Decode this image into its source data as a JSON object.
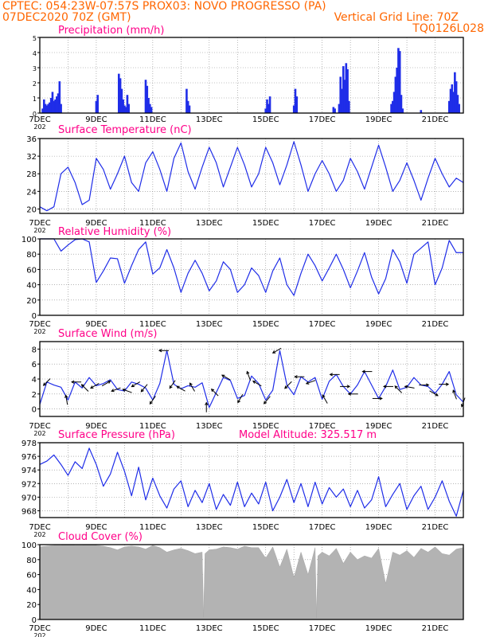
{
  "header": {
    "line1_left": "CPTEC:   054:23W-07:57S   PROX03: NOVO PROGRESSO (PA)",
    "line2_left": "07DEC2020 70Z (GMT)",
    "line2_right": "Vertical Grid Line: 70Z",
    "line3_right": "TQ0126L028"
  },
  "colors": {
    "header": "#ff6600",
    "title": "#ff0088",
    "series": "#1f2de8",
    "bars": "#1f2de8",
    "cloud": "#b3b3b3",
    "grid": "#888888",
    "arrow": "#000000"
  },
  "x_axis": {
    "labels": [
      "7DEC",
      "9DEC",
      "11DEC",
      "13DEC",
      "15DEC",
      "17DEC",
      "19DEC",
      "21DEC"
    ],
    "day_range": [
      7,
      22
    ],
    "year_stub": "202"
  },
  "chart_data": [
    {
      "id": "precip",
      "type": "bar",
      "title": "Precipitation (mm/h)",
      "x_unit": "day of December 2020",
      "ylim": [
        0,
        5
      ],
      "yticks": [
        0,
        1,
        2,
        3,
        4,
        5
      ],
      "x": [
        7.1,
        7.15,
        7.2,
        7.25,
        7.3,
        7.35,
        7.4,
        7.45,
        7.5,
        7.55,
        7.6,
        7.65,
        7.7,
        7.75,
        9.0,
        9.05,
        9.8,
        9.85,
        9.9,
        9.95,
        10.0,
        10.05,
        10.1,
        10.15,
        10.75,
        10.8,
        10.85,
        10.9,
        10.95,
        12.2,
        12.25,
        12.3,
        15.0,
        15.05,
        15.1,
        15.15,
        16.0,
        16.05,
        16.1,
        17.4,
        17.45,
        17.6,
        17.65,
        17.7,
        17.75,
        17.8,
        17.85,
        17.9,
        17.95,
        19.45,
        19.5,
        19.55,
        19.6,
        19.65,
        19.7,
        19.75,
        19.8,
        19.85,
        20.5,
        21.5,
        21.55,
        21.6,
        21.65,
        21.7,
        21.75,
        21.8,
        21.85
      ],
      "values": [
        0.3,
        0.9,
        0.6,
        0.5,
        0.6,
        0.7,
        1.0,
        1.4,
        0.8,
        0.9,
        1.1,
        1.3,
        2.1,
        0.6,
        0.8,
        1.2,
        2.6,
        2.3,
        1.6,
        0.9,
        0.5,
        0.4,
        1.2,
        0.6,
        2.2,
        1.8,
        1.0,
        0.6,
        0.4,
        1.6,
        0.8,
        0.5,
        0.3,
        0.9,
        0.6,
        1.1,
        0.5,
        1.6,
        1.1,
        0.4,
        0.3,
        0.6,
        2.4,
        1.6,
        3.1,
        2.2,
        3.3,
        2.9,
        0.8,
        0.6,
        0.8,
        1.4,
        2.4,
        3.0,
        4.3,
        4.1,
        1.2,
        0.3,
        0.2,
        0.8,
        1.6,
        1.9,
        1.4,
        2.7,
        2.1,
        1.2,
        0.6
      ]
    },
    {
      "id": "temp",
      "type": "line",
      "title": "Surface Temperature (nC)",
      "x_unit": "day of December 2020",
      "ylim": [
        19,
        36
      ],
      "yticks": [
        20,
        24,
        28,
        32,
        36
      ],
      "x": [
        7.0,
        7.25,
        7.5,
        7.75,
        8.0,
        8.25,
        8.5,
        8.75,
        9.0,
        9.25,
        9.5,
        9.75,
        10.0,
        10.25,
        10.5,
        10.75,
        11.0,
        11.25,
        11.5,
        11.75,
        12.0,
        12.25,
        12.5,
        12.75,
        13.0,
        13.25,
        13.5,
        13.75,
        14.0,
        14.25,
        14.5,
        14.75,
        15.0,
        15.25,
        15.5,
        15.75,
        16.0,
        16.25,
        16.5,
        16.75,
        17.0,
        17.25,
        17.5,
        17.75,
        18.0,
        18.25,
        18.5,
        18.75,
        19.0,
        19.25,
        19.5,
        19.75,
        20.0,
        20.25,
        20.5,
        20.75,
        21.0,
        21.25,
        21.5,
        21.75,
        22.0
      ],
      "values": [
        20.5,
        19.6,
        20.5,
        28,
        29.5,
        26,
        21,
        22,
        31.5,
        29,
        24.5,
        28,
        32,
        26,
        24,
        30.5,
        33,
        29,
        24,
        31.5,
        35,
        28.5,
        24.5,
        29.5,
        34,
        30.5,
        25,
        29.5,
        34,
        30,
        25,
        28,
        34,
        30.5,
        25.5,
        30,
        35.3,
        30,
        24,
        28,
        31,
        28,
        24,
        26.5,
        31.5,
        28.5,
        24.5,
        29.5,
        34.5,
        29.5,
        24,
        26.5,
        30.5,
        26.5,
        22,
        27,
        31.5,
        28,
        25,
        27,
        26
      ]
    },
    {
      "id": "rh",
      "type": "line",
      "title": "Relative Humidity (%)",
      "x_unit": "day of December 2020",
      "ylim": [
        0,
        100
      ],
      "yticks": [
        0,
        20,
        40,
        60,
        80,
        100
      ],
      "x": [
        7.0,
        7.25,
        7.5,
        7.75,
        8.0,
        8.25,
        8.5,
        8.75,
        9.0,
        9.25,
        9.5,
        9.75,
        10.0,
        10.25,
        10.5,
        10.75,
        11.0,
        11.25,
        11.5,
        11.75,
        12.0,
        12.25,
        12.5,
        12.75,
        13.0,
        13.25,
        13.5,
        13.75,
        14.0,
        14.25,
        14.5,
        14.75,
        15.0,
        15.25,
        15.5,
        15.75,
        16.0,
        16.25,
        16.5,
        16.75,
        17.0,
        17.25,
        17.5,
        17.75,
        18.0,
        18.25,
        18.5,
        18.75,
        19.0,
        19.25,
        19.5,
        19.75,
        20.0,
        20.25,
        20.5,
        20.75,
        21.0,
        21.25,
        21.5,
        21.75,
        22.0
      ],
      "values": [
        100,
        100,
        100,
        84,
        92,
        99,
        100,
        96,
        43,
        58,
        75,
        74,
        42,
        65,
        86,
        96,
        54,
        62,
        86,
        62,
        30,
        55,
        72,
        55,
        32,
        45,
        70,
        60,
        30,
        40,
        62,
        52,
        30,
        58,
        75,
        40,
        26,
        55,
        80,
        65,
        45,
        62,
        80,
        60,
        36,
        58,
        82,
        50,
        28,
        48,
        86,
        70,
        42,
        80,
        88,
        96,
        40,
        62,
        98,
        82,
        82
      ]
    },
    {
      "id": "wind",
      "type": "line",
      "title": "Surface Wind (m/s)",
      "x_unit": "day of December 2020",
      "ylim": [
        -1,
        9
      ],
      "yticks": [
        0,
        2,
        4,
        6,
        8
      ],
      "x": [
        7.0,
        7.25,
        7.5,
        7.75,
        8.0,
        8.25,
        8.5,
        8.75,
        9.0,
        9.25,
        9.5,
        9.75,
        10.0,
        10.25,
        10.5,
        10.75,
        11.0,
        11.25,
        11.5,
        11.75,
        12.0,
        12.25,
        12.5,
        12.75,
        13.0,
        13.25,
        13.5,
        13.75,
        14.0,
        14.25,
        14.5,
        14.75,
        15.0,
        15.25,
        15.5,
        15.75,
        16.0,
        16.25,
        16.5,
        16.75,
        17.0,
        17.25,
        17.5,
        17.75,
        18.0,
        18.25,
        18.5,
        18.75,
        19.0,
        19.25,
        19.5,
        19.75,
        20.0,
        20.25,
        20.5,
        20.75,
        21.0,
        21.25,
        21.5,
        21.75,
        22.0
      ],
      "values": [
        0.6,
        3.6,
        3.2,
        2.9,
        1.2,
        3.6,
        2.8,
        4.2,
        3.1,
        3.4,
        3.9,
        2.6,
        2.4,
        3.6,
        3.3,
        2.8,
        1.2,
        3.4,
        7.8,
        3.3,
        2.7,
        3.1,
        2.9,
        3.5,
        0.2,
        2.2,
        4.2,
        3.8,
        1.4,
        1.8,
        4.4,
        3.4,
        1.2,
        2.5,
        7.8,
        3.2,
        1.9,
        4.3,
        3.6,
        4.2,
        1.3,
        3.7,
        4.6,
        3.0,
        2.0,
        3.2,
        5.0,
        3.2,
        1.4,
        3.0,
        5.2,
        2.6,
        2.9,
        4.2,
        3.2,
        3.0,
        2.1,
        3.3,
        5.0,
        1.9,
        0.9
      ],
      "arrows": [
        {
          "x": 7.25,
          "angle": 225
        },
        {
          "x": 7.95,
          "angle": 100
        },
        {
          "x": 8.3,
          "angle": 180
        },
        {
          "x": 8.6,
          "angle": 135
        },
        {
          "x": 8.95,
          "angle": 210
        },
        {
          "x": 9.35,
          "angle": 30
        },
        {
          "x": 9.7,
          "angle": 200
        },
        {
          "x": 10.1,
          "angle": 160
        },
        {
          "x": 10.4,
          "angle": 210
        },
        {
          "x": 10.7,
          "angle": 230
        },
        {
          "x": 11.0,
          "angle": 235
        },
        {
          "x": 11.4,
          "angle": 180
        },
        {
          "x": 11.7,
          "angle": 235
        },
        {
          "x": 12.0,
          "angle": 150
        },
        {
          "x": 12.4,
          "angle": 120
        },
        {
          "x": 12.9,
          "angle": 90
        },
        {
          "x": 13.2,
          "angle": 135
        },
        {
          "x": 13.6,
          "angle": 150
        },
        {
          "x": 14.1,
          "angle": 240
        },
        {
          "x": 14.4,
          "angle": 110
        },
        {
          "x": 14.7,
          "angle": 150
        },
        {
          "x": 15.05,
          "angle": 230
        },
        {
          "x": 15.4,
          "angle": 210
        },
        {
          "x": 15.8,
          "angle": 225
        },
        {
          "x": 16.2,
          "angle": 180
        },
        {
          "x": 16.6,
          "angle": 200
        },
        {
          "x": 17.1,
          "angle": 120
        },
        {
          "x": 17.45,
          "angle": 180
        },
        {
          "x": 17.8,
          "angle": 0
        },
        {
          "x": 18.1,
          "angle": 180
        },
        {
          "x": 18.6,
          "angle": 180
        },
        {
          "x": 18.95,
          "angle": 0
        },
        {
          "x": 19.35,
          "angle": 180
        },
        {
          "x": 19.7,
          "angle": 135
        },
        {
          "x": 20.1,
          "angle": 170
        },
        {
          "x": 20.6,
          "angle": 0
        },
        {
          "x": 20.95,
          "angle": 330
        },
        {
          "x": 21.3,
          "angle": 0
        },
        {
          "x": 21.7,
          "angle": 110
        },
        {
          "x": 22.0,
          "angle": 250
        }
      ]
    },
    {
      "id": "pres",
      "type": "line",
      "title": "Surface Pressure (hPa)",
      "annotation": "Model Altitude: 325.517 m",
      "x_unit": "day of December 2020",
      "ylim": [
        967,
        978
      ],
      "yticks": [
        968,
        970,
        972,
        974,
        976,
        978
      ],
      "x": [
        7.0,
        7.25,
        7.5,
        7.75,
        8.0,
        8.25,
        8.5,
        8.75,
        9.0,
        9.25,
        9.5,
        9.75,
        10.0,
        10.25,
        10.5,
        10.75,
        11.0,
        11.25,
        11.5,
        11.75,
        12.0,
        12.25,
        12.5,
        12.75,
        13.0,
        13.25,
        13.5,
        13.75,
        14.0,
        14.25,
        14.5,
        14.75,
        15.0,
        15.25,
        15.5,
        15.75,
        16.0,
        16.25,
        16.5,
        16.75,
        17.0,
        17.25,
        17.5,
        17.75,
        18.0,
        18.25,
        18.5,
        18.75,
        19.0,
        19.25,
        19.5,
        19.75,
        20.0,
        20.25,
        20.5,
        20.75,
        21.0,
        21.25,
        21.5,
        21.75,
        22.0
      ],
      "values": [
        974.8,
        975.3,
        976.2,
        974.8,
        973.2,
        975.2,
        974.2,
        977.2,
        974.8,
        971.6,
        973.4,
        976.6,
        973.8,
        970.2,
        974.4,
        969.6,
        972.8,
        970.2,
        968.4,
        971.2,
        972.4,
        968.6,
        971.0,
        969.2,
        972.0,
        968.2,
        970.4,
        968.8,
        972.2,
        968.6,
        970.6,
        969.0,
        972.2,
        968.0,
        970.0,
        972.6,
        969.2,
        972.0,
        968.6,
        972.2,
        969.0,
        971.4,
        970.0,
        971.2,
        968.6,
        971.0,
        968.4,
        969.6,
        973.0,
        968.6,
        970.4,
        972.0,
        968.2,
        970.2,
        971.6,
        968.2,
        970.0,
        972.4,
        969.4,
        967.2,
        971.0
      ]
    },
    {
      "id": "cloud",
      "type": "area",
      "title": "Cloud Cover (%)",
      "x_unit": "day of December 2020",
      "ylim": [
        0,
        100
      ],
      "yticks": [
        0,
        20,
        40,
        60,
        80,
        100
      ],
      "x": [
        7.0,
        7.25,
        7.5,
        7.75,
        8.0,
        8.25,
        8.5,
        8.75,
        9.0,
        9.25,
        9.5,
        9.75,
        10.0,
        10.25,
        10.5,
        10.75,
        11.0,
        11.25,
        11.5,
        11.75,
        12.0,
        12.25,
        12.5,
        12.75,
        12.8,
        12.85,
        13.0,
        13.25,
        13.5,
        13.75,
        14.0,
        14.25,
        14.5,
        14.75,
        15.0,
        15.25,
        15.5,
        15.75,
        16.0,
        16.25,
        16.5,
        16.75,
        16.8,
        16.85,
        17.0,
        17.25,
        17.5,
        17.75,
        18.0,
        18.25,
        18.5,
        18.75,
        19.0,
        19.25,
        19.5,
        19.75,
        20.0,
        20.25,
        20.5,
        20.75,
        21.0,
        21.25,
        21.5,
        21.75,
        22.0
      ],
      "values": [
        97,
        98,
        99,
        99,
        100,
        99,
        99,
        100,
        99,
        98,
        96,
        93,
        97,
        98,
        97,
        94,
        99,
        96,
        90,
        93,
        95,
        92,
        88,
        90,
        3,
        88,
        93,
        94,
        97,
        96,
        94,
        98,
        96,
        96,
        82,
        97,
        70,
        94,
        56,
        90,
        60,
        96,
        2,
        85,
        90,
        85,
        95,
        75,
        90,
        80,
        85,
        82,
        95,
        48,
        90,
        86,
        92,
        83,
        95,
        90,
        97,
        88,
        86,
        94,
        96
      ]
    }
  ]
}
